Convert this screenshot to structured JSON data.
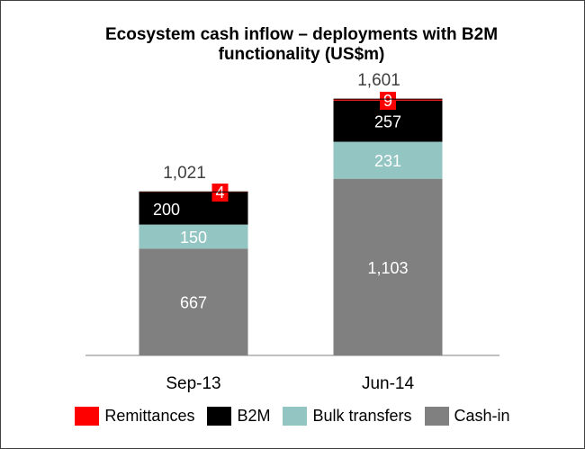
{
  "chart_data": {
    "type": "bar",
    "stacked": true,
    "title_line1": "Ecosystem cash inflow – deployments with B2M",
    "title_line2": "functionality (US$m)",
    "categories": [
      "Sep-13",
      "Jun-14"
    ],
    "totals": [
      "1,021",
      "1,601"
    ],
    "series": [
      {
        "name": "Cash-in",
        "color": "#808080",
        "text_color": "#ffffff",
        "values": [
          667,
          1103
        ],
        "labels": [
          "667",
          "1,103"
        ]
      },
      {
        "name": "Bulk transfers",
        "color": "#93c5c3",
        "text_color": "#ffffff",
        "values": [
          150,
          231
        ],
        "labels": [
          "150",
          "231"
        ]
      },
      {
        "name": "B2M",
        "color": "#000000",
        "text_color": "#ffffff",
        "values": [
          200,
          257
        ],
        "labels": [
          "200",
          "257"
        ]
      },
      {
        "name": "Remittances",
        "color": "#ff0000",
        "text_color": "#ffffff",
        "values": [
          4,
          9
        ],
        "labels": [
          "4",
          "9"
        ]
      }
    ],
    "legend_order": [
      "Remittances",
      "B2M",
      "Bulk transfers",
      "Cash-in"
    ],
    "legend_position": "bottom",
    "grid": false
  }
}
